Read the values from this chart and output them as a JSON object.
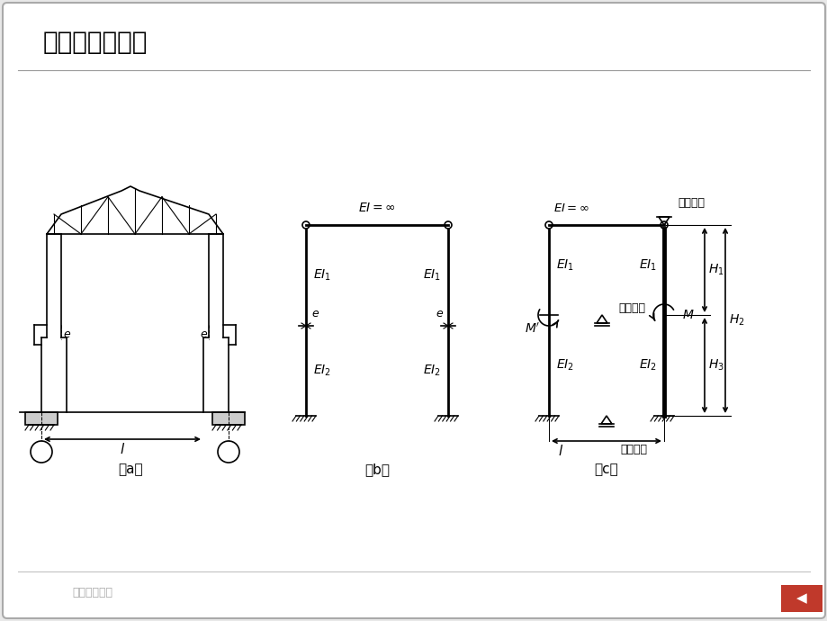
{
  "title": "排架计算简图：",
  "bg_color": "#f0f0f0",
  "label_a": "（a）",
  "label_b": "（b）",
  "label_c": "（c）",
  "footer": "排架计算最新"
}
